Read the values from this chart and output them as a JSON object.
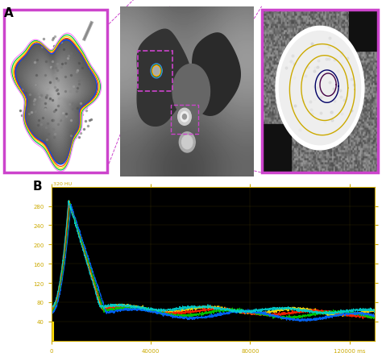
{
  "panel_a_label": "A",
  "panel_b_label": "B",
  "outer_bg": "#ffffff",
  "graph_bg": "#000000",
  "axis_color": "#ccaa00",
  "border_color": "#cc44cc",
  "yticks": [
    40,
    80,
    120,
    160,
    200,
    240,
    280
  ],
  "xticks": [
    0,
    40000,
    80000,
    120000
  ],
  "line_colors": [
    "#ffdd00",
    "#ff2200",
    "#00cc00",
    "#0066ff",
    "#00cccc"
  ],
  "ylim": [
    0,
    320
  ],
  "xlim": [
    0,
    130000
  ],
  "top_label": "320 HU",
  "peak_t": 8000,
  "peak_val": 290,
  "base_val": 65,
  "init_val": 40
}
